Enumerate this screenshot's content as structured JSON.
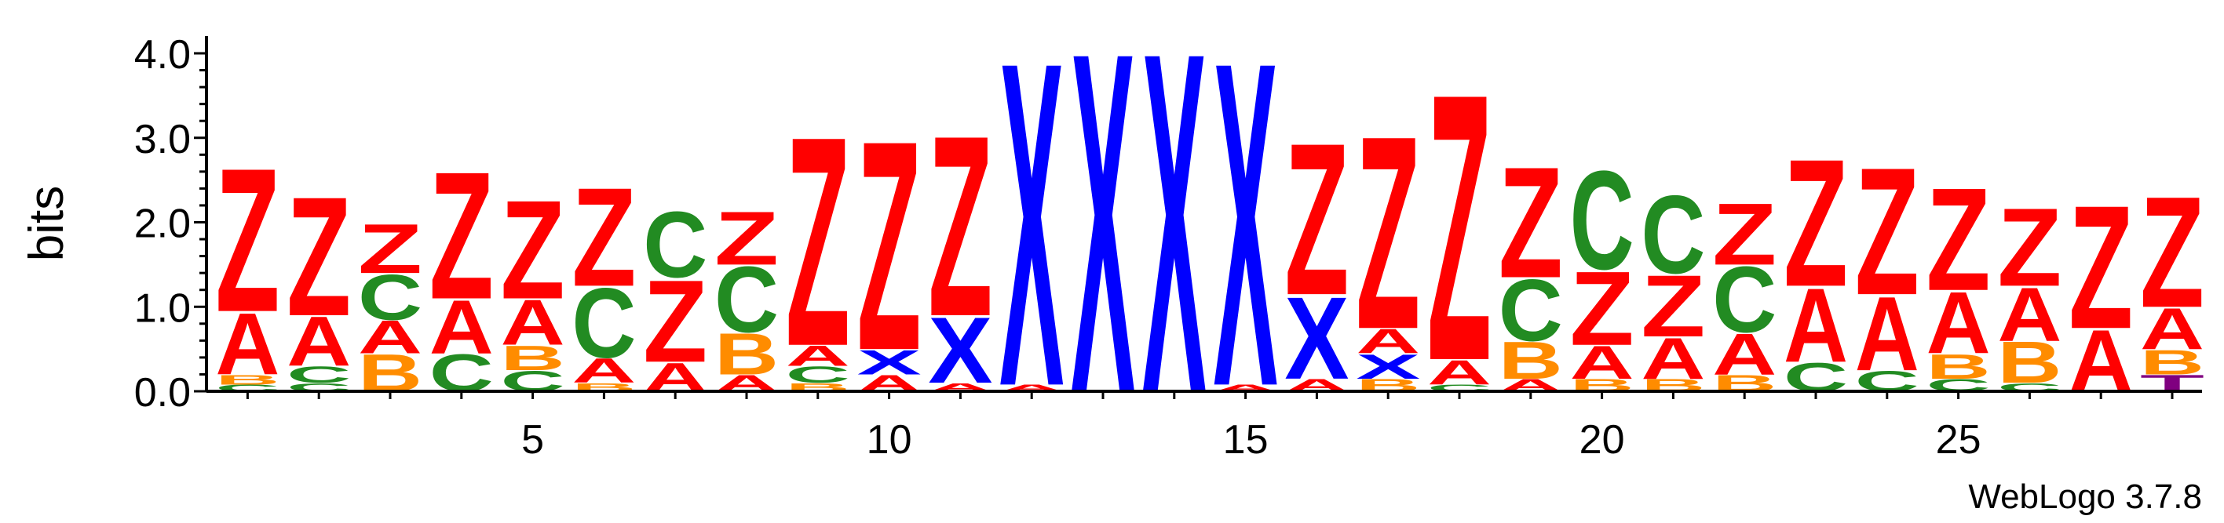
{
  "chart_data": {
    "type": "sequence-logo",
    "ylabel": "bits",
    "ylim": [
      0,
      4.0
    ],
    "y_ticks": [
      0.0,
      1.0,
      2.0,
      3.0,
      4.0
    ],
    "y_tick_labels": [
      "0.0",
      "1.0",
      "2.0",
      "3.0",
      "4.0"
    ],
    "x_ticks": [
      5,
      10,
      15,
      20,
      25
    ],
    "x_tick_labels": [
      "5",
      "10",
      "15",
      "20",
      "25"
    ],
    "positions": [
      1,
      2,
      3,
      4,
      5,
      6,
      7,
      8,
      9,
      10,
      11,
      12,
      13,
      14,
      15,
      16,
      17,
      18,
      19,
      20,
      21,
      22,
      23,
      24,
      25,
      26,
      27,
      28
    ],
    "colors": {
      "Z": "#ff0000",
      "A": "#ff0000",
      "C": "#228b22",
      "B": "#ff8c00",
      "X": "#0000ff",
      "T": "#800080"
    },
    "stacks": [
      [
        {
          "l": "C",
          "h": 0.08
        },
        {
          "l": "B",
          "h": 0.12
        },
        {
          "l": "A",
          "h": 0.75
        },
        {
          "l": "Z",
          "h": 1.75
        }
      ],
      [
        {
          "l": "C",
          "h": 0.1
        },
        {
          "l": "C",
          "h": 0.2
        },
        {
          "l": "A",
          "h": 0.6
        },
        {
          "l": "Z",
          "h": 1.45
        }
      ],
      [
        {
          "l": "B",
          "h": 0.45
        },
        {
          "l": "A",
          "h": 0.4
        },
        {
          "l": "C",
          "h": 0.55
        },
        {
          "l": "Z",
          "h": 0.6
        }
      ],
      [
        {
          "l": "C",
          "h": 0.45
        },
        {
          "l": "A",
          "h": 0.65
        },
        {
          "l": "Z",
          "h": 1.55
        }
      ],
      [
        {
          "l": "C",
          "h": 0.25
        },
        {
          "l": "B",
          "h": 0.3
        },
        {
          "l": "A",
          "h": 0.55
        },
        {
          "l": "Z",
          "h": 1.2
        }
      ],
      [
        {
          "l": "B",
          "h": 0.1
        },
        {
          "l": "A",
          "h": 0.3
        },
        {
          "l": "C",
          "h": 0.85
        },
        {
          "l": "Z",
          "h": 1.2
        }
      ],
      [
        {
          "l": "A",
          "h": 0.35
        },
        {
          "l": "Z",
          "h": 1.0
        },
        {
          "l": "C",
          "h": 0.8
        }
      ],
      [
        {
          "l": "A",
          "h": 0.2
        },
        {
          "l": "B",
          "h": 0.5
        },
        {
          "l": "C",
          "h": 0.8
        },
        {
          "l": "Z",
          "h": 0.65
        }
      ],
      [
        {
          "l": "B",
          "h": 0.1
        },
        {
          "l": "C",
          "h": 0.2
        },
        {
          "l": "A",
          "h": 0.25
        },
        {
          "l": "Z",
          "h": 2.55
        }
      ],
      [
        {
          "l": "A",
          "h": 0.2
        },
        {
          "l": "X",
          "h": 0.3
        },
        {
          "l": "Z",
          "h": 2.55
        }
      ],
      [
        {
          "l": "A",
          "h": 0.1
        },
        {
          "l": "X",
          "h": 0.8
        },
        {
          "l": "Z",
          "h": 2.2
        }
      ],
      [
        {
          "l": "A",
          "h": 0.08
        },
        {
          "l": "X",
          "h": 3.95
        }
      ],
      [
        {
          "l": "X",
          "h": 4.15
        }
      ],
      [
        {
          "l": "X",
          "h": 4.15
        }
      ],
      [
        {
          "l": "A",
          "h": 0.08
        },
        {
          "l": "X",
          "h": 3.95
        }
      ],
      [
        {
          "l": "A",
          "h": 0.15
        },
        {
          "l": "X",
          "h": 1.0
        },
        {
          "l": "Z",
          "h": 1.85
        }
      ],
      [
        {
          "l": "B",
          "h": 0.15
        },
        {
          "l": "X",
          "h": 0.3
        },
        {
          "l": "A",
          "h": 0.3
        },
        {
          "l": "Z",
          "h": 2.35
        }
      ],
      [
        {
          "l": "C",
          "h": 0.08
        },
        {
          "l": "A",
          "h": 0.3
        },
        {
          "l": "Z",
          "h": 3.25
        }
      ],
      [
        {
          "l": "A",
          "h": 0.15
        },
        {
          "l": "B",
          "h": 0.45
        },
        {
          "l": "C",
          "h": 0.75
        },
        {
          "l": "Z",
          "h": 1.35
        }
      ],
      [
        {
          "l": "B",
          "h": 0.15
        },
        {
          "l": "A",
          "h": 0.4
        },
        {
          "l": "Z",
          "h": 0.9
        },
        {
          "l": "C",
          "h": 1.2
        }
      ],
      [
        {
          "l": "B",
          "h": 0.15
        },
        {
          "l": "A",
          "h": 0.5
        },
        {
          "l": "Z",
          "h": 0.75
        },
        {
          "l": "C",
          "h": 0.95
        }
      ],
      [
        {
          "l": "B",
          "h": 0.2
        },
        {
          "l": "A",
          "h": 0.5
        },
        {
          "l": "C",
          "h": 0.8
        },
        {
          "l": "Z",
          "h": 0.75
        }
      ],
      [
        {
          "l": "C",
          "h": 0.35
        },
        {
          "l": "A",
          "h": 0.9
        },
        {
          "l": "Z",
          "h": 1.55
        }
      ],
      [
        {
          "l": "C",
          "h": 0.25
        },
        {
          "l": "A",
          "h": 0.9
        },
        {
          "l": "Z",
          "h": 1.55
        }
      ],
      [
        {
          "l": "C",
          "h": 0.15
        },
        {
          "l": "B",
          "h": 0.3
        },
        {
          "l": "A",
          "h": 0.75
        },
        {
          "l": "Z",
          "h": 1.25
        }
      ],
      [
        {
          "l": "C",
          "h": 0.1
        },
        {
          "l": "B",
          "h": 0.5
        },
        {
          "l": "A",
          "h": 0.65
        },
        {
          "l": "Z",
          "h": 0.95
        }
      ],
      [
        {
          "l": "A",
          "h": 0.75
        },
        {
          "l": "Z",
          "h": 1.5
        }
      ],
      [
        {
          "l": "T",
          "h": 0.2
        },
        {
          "l": "B",
          "h": 0.3
        },
        {
          "l": "A",
          "h": 0.5
        },
        {
          "l": "Z",
          "h": 1.35
        }
      ]
    ]
  },
  "footer": {
    "credit": "WebLogo 3.7.8"
  }
}
